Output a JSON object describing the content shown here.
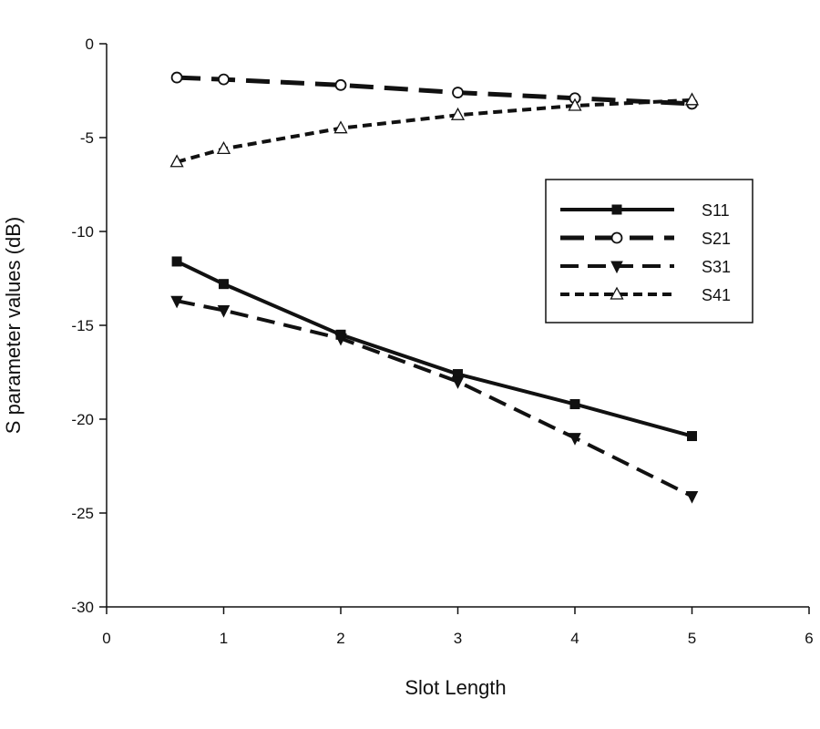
{
  "chart_data": {
    "type": "line",
    "title": "",
    "xlabel": "Slot Length",
    "ylabel": "S parameter values (dB)",
    "xlim": [
      0,
      6
    ],
    "ylim": [
      -30,
      0
    ],
    "x_ticks": [
      "0",
      "1",
      "2",
      "3",
      "4",
      "5",
      "6"
    ],
    "y_ticks": [
      "0",
      "-5",
      "-10",
      "-15",
      "-20",
      "-25",
      "-30"
    ],
    "grid": false,
    "legend_position": "right",
    "x": [
      0.6,
      1,
      2,
      3,
      4,
      5
    ],
    "series": [
      {
        "name": "S11",
        "values": [
          -11.6,
          -12.8,
          -15.5,
          -17.6,
          -19.2,
          -20.9
        ],
        "marker": "square",
        "dash": "solid",
        "width": 4
      },
      {
        "name": "S21",
        "values": [
          -1.8,
          -1.9,
          -2.2,
          -2.6,
          -2.9,
          -3.2
        ],
        "marker": "circle",
        "dash": "long",
        "width": 5
      },
      {
        "name": "S31",
        "values": [
          -13.7,
          -14.2,
          -15.7,
          -18.0,
          -21.0,
          -24.1
        ],
        "marker": "triangle-down",
        "dash": "medium",
        "width": 4
      },
      {
        "name": "S41",
        "values": [
          -6.3,
          -5.6,
          -4.5,
          -3.8,
          -3.3,
          -3.0
        ],
        "marker": "triangle-up",
        "dash": "short",
        "width": 4
      }
    ]
  }
}
